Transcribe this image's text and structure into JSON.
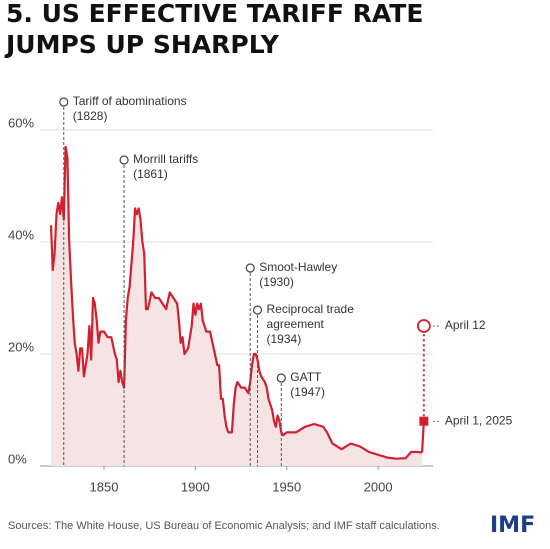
{
  "chart_data": {
    "type": "area-line",
    "title": [
      "5. US EFFECTIVE TARIFF RATE",
      "JUMPS UP SHARPLY"
    ],
    "source": "Sources: The White House, US Bureau of Economic Analysis; and IMF staff calculations.",
    "logo": "IMF",
    "xlim": [
      1815,
      2030
    ],
    "xticks": [
      1850,
      1900,
      1950,
      2000
    ],
    "ylim": [
      0,
      60
    ],
    "yticks": [
      {
        "value": 0,
        "label": "0%"
      },
      {
        "value": 20,
        "label": "20%"
      },
      {
        "value": 40,
        "label": "40%"
      },
      {
        "value": 60,
        "label": "60%"
      }
    ],
    "grid": true,
    "x": [
      1821,
      1822,
      1823,
      1824,
      1825,
      1826,
      1827,
      1828,
      1829,
      1830,
      1831,
      1832,
      1833,
      1834,
      1835,
      1836,
      1837,
      1838,
      1839,
      1840,
      1841,
      1842,
      1843,
      1844,
      1845,
      1846,
      1847,
      1848,
      1850,
      1852,
      1854,
      1856,
      1857,
      1858,
      1859,
      1860,
      1861,
      1862,
      1863,
      1864,
      1865,
      1866,
      1867,
      1868,
      1869,
      1870,
      1871,
      1872,
      1873,
      1874,
      1876,
      1878,
      1880,
      1882,
      1884,
      1886,
      1888,
      1890,
      1891,
      1892,
      1893,
      1894,
      1896,
      1898,
      1899,
      1900,
      1901,
      1902,
      1903,
      1904,
      1906,
      1908,
      1910,
      1912,
      1913,
      1914,
      1915,
      1916,
      1917,
      1918,
      1920,
      1921,
      1922,
      1923,
      1925,
      1927,
      1929,
      1930,
      1931,
      1932,
      1933,
      1934,
      1935,
      1936,
      1938,
      1939,
      1940,
      1942,
      1943,
      1944,
      1945,
      1946,
      1947,
      1948,
      1950,
      1955,
      1960,
      1965,
      1970,
      1972,
      1975,
      1980,
      1985,
      1990,
      1995,
      2000,
      2005,
      2010,
      2015,
      2018,
      2020,
      2022,
      2024
    ],
    "series": [
      {
        "name": "US effective tariff rate",
        "color": "#d1202f",
        "fill": "#f6e4e4",
        "values": [
          43,
          35,
          38,
          45,
          47,
          45,
          48,
          44,
          57,
          55,
          40,
          33,
          27,
          22,
          20,
          17,
          21,
          21,
          16,
          18,
          20,
          25,
          19,
          30,
          29,
          26,
          22,
          24,
          24,
          23,
          23,
          20,
          19,
          15,
          17,
          15,
          14,
          26,
          30,
          32,
          36,
          40,
          46,
          45,
          46,
          44,
          40,
          38,
          28,
          28,
          31,
          30,
          30,
          29,
          28,
          31,
          30,
          29,
          26,
          22,
          23,
          20,
          21,
          25,
          29,
          27,
          29,
          28,
          29,
          26,
          24,
          24,
          21,
          18,
          18,
          12,
          12,
          9,
          7,
          6,
          6,
          11,
          14,
          15,
          14,
          14,
          13,
          15,
          18,
          20,
          20,
          19,
          17,
          16,
          15,
          14,
          12,
          10,
          8,
          7,
          9,
          8,
          6,
          5.5,
          6,
          6,
          7,
          7.5,
          7,
          6,
          4,
          3,
          4,
          3.5,
          2.5,
          2,
          1.5,
          1.3,
          1.4,
          2.5,
          2.5,
          2.5,
          2.4
        ]
      }
    ],
    "markers": [
      {
        "label": "April 1, 2025",
        "x": 2025,
        "value": 8,
        "shape": "square"
      },
      {
        "label": "April 12",
        "x": 2025,
        "value": 25,
        "shape": "circle"
      }
    ],
    "events": [
      {
        "x": 1828,
        "lines": [
          "Tariff of abominations",
          "(1828)"
        ]
      },
      {
        "x": 1861,
        "lines": [
          "Morrill tariffs",
          "(1861)"
        ]
      },
      {
        "x": 1930,
        "lines": [
          "Smoot-Hawley",
          "(1930)"
        ]
      },
      {
        "x": 1934,
        "lines": [
          "Reciprocal trade",
          "agreement",
          "(1934)"
        ]
      },
      {
        "x": 1947,
        "lines": [
          "GATT",
          "(1947)"
        ]
      }
    ]
  }
}
